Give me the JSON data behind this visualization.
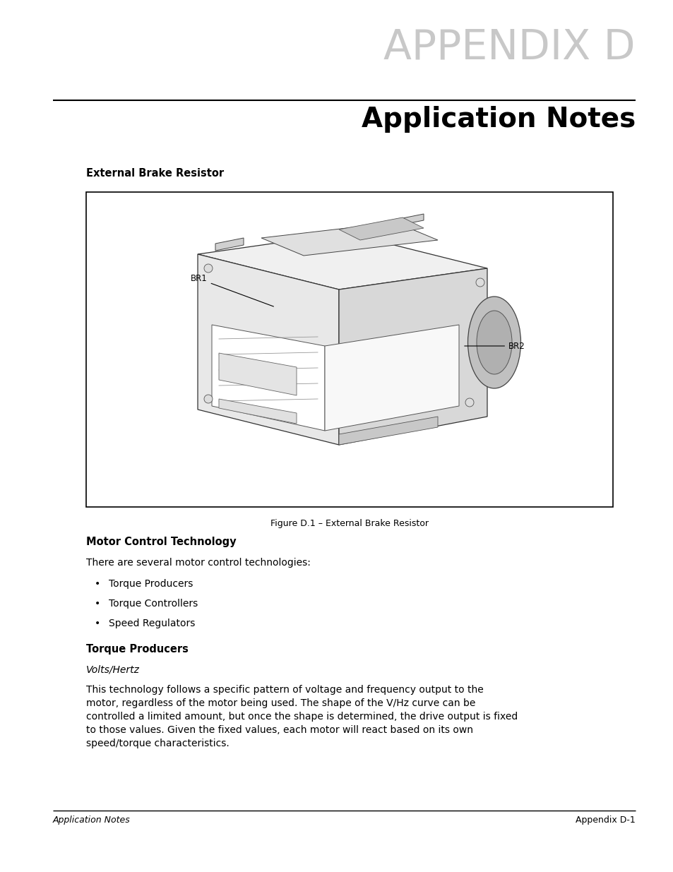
{
  "page_bg": "#ffffff",
  "appendix_label": "APPENDIX D",
  "appendix_label_color": "#c8c8c8",
  "appendix_label_fontsize": 42,
  "section_title": "Application Notes",
  "section_title_fontsize": 28,
  "section_title_color": "#000000",
  "subsection1": "External Brake Resistor",
  "subsection1_fontsize": 10.5,
  "figure_caption": "Figure D.1 – External Brake Resistor",
  "figure_caption_fontsize": 9,
  "subsection2": "Motor Control Technology",
  "subsection2_fontsize": 10.5,
  "body_text1": "There are several motor control technologies:",
  "body_text1_fontsize": 10,
  "bullet_items": [
    "Torque Producers",
    "Torque Controllers",
    "Speed Regulators"
  ],
  "bullet_fontsize": 10,
  "subsection3": "Torque Producers",
  "subsection3_fontsize": 10.5,
  "italic_label": "Volts/Hertz",
  "italic_label_fontsize": 10,
  "body_text2_lines": [
    "This technology follows a specific pattern of voltage and frequency output to the",
    "motor, regardless of the motor being used. The shape of the V/Hz curve can be",
    "controlled a limited amount, but once the shape is determined, the drive output is fixed",
    "to those values. Given the fixed values, each motor will react based on its own",
    "speed/torque characteristics."
  ],
  "body_text2_fontsize": 10,
  "footer_left": "Application Notes",
  "footer_right": "Appendix D-1",
  "footer_fontsize": 9
}
